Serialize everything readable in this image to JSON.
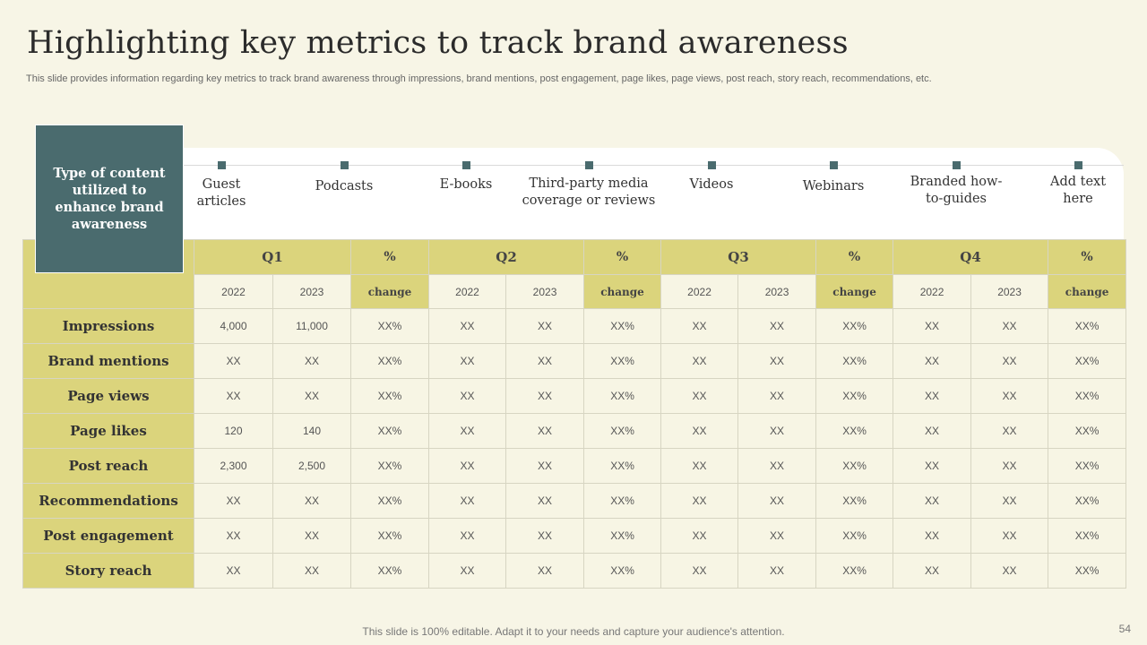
{
  "title": "Highlighting key metrics to track brand awareness",
  "subtitle": "This slide provides information regarding key metrics to track brand awareness through impressions, brand mentions, post engagement, page likes, page views, post reach, story reach, recommendations, etc.",
  "type_box": "Type of content utilized to enhance brand awareness",
  "content_types": [
    "Guest articles",
    "Podcasts",
    "E-books",
    "Third-party media coverage or reviews",
    "Videos",
    "Webinars",
    "Branded how-to-guides",
    "Add text here"
  ],
  "table": {
    "quarters": [
      "Q1",
      "Q2",
      "Q3",
      "Q4"
    ],
    "percent_label": "%",
    "year_labels": [
      "2022",
      "2023"
    ],
    "change_label": "change",
    "rows": [
      {
        "metric": "Impressions",
        "values": [
          "4,000",
          "11,000",
          "XX%",
          "XX",
          "XX",
          "XX%",
          "XX",
          "XX",
          "XX%",
          "XX",
          "XX",
          "XX%"
        ]
      },
      {
        "metric": "Brand mentions",
        "values": [
          "XX",
          "XX",
          "XX%",
          "XX",
          "XX",
          "XX%",
          "XX",
          "XX",
          "XX%",
          "XX",
          "XX",
          "XX%"
        ]
      },
      {
        "metric": "Page views",
        "values": [
          "XX",
          "XX",
          "XX%",
          "XX",
          "XX",
          "XX%",
          "XX",
          "XX",
          "XX%",
          "XX",
          "XX",
          "XX%"
        ]
      },
      {
        "metric": "Page likes",
        "values": [
          "120",
          "140",
          "XX%",
          "XX",
          "XX",
          "XX%",
          "XX",
          "XX",
          "XX%",
          "XX",
          "XX",
          "XX%"
        ]
      },
      {
        "metric": "Post reach",
        "values": [
          "2,300",
          "2,500",
          "XX%",
          "XX",
          "XX",
          "XX%",
          "XX",
          "XX",
          "XX%",
          "XX",
          "XX",
          "XX%"
        ]
      },
      {
        "metric": "Recommendations",
        "values": [
          "XX",
          "XX",
          "XX%",
          "XX",
          "XX",
          "XX%",
          "XX",
          "XX",
          "XX%",
          "XX",
          "XX",
          "XX%"
        ]
      },
      {
        "metric": "Post engagement",
        "values": [
          "XX",
          "XX",
          "XX%",
          "XX",
          "XX",
          "XX%",
          "XX",
          "XX",
          "XX%",
          "XX",
          "XX",
          "XX%"
        ]
      },
      {
        "metric": "Story reach",
        "values": [
          "XX",
          "XX",
          "XX%",
          "XX",
          "XX",
          "XX%",
          "XX",
          "XX",
          "XX%",
          "XX",
          "XX",
          "XX%"
        ]
      }
    ]
  },
  "footer": "This slide is 100% editable. Adapt it to your needs and capture your audience's attention.",
  "page_number": "54",
  "colors": {
    "accent_olive": "#dbd47c",
    "teal_box": "#4a6b6e",
    "background": "#f7f5e6"
  }
}
